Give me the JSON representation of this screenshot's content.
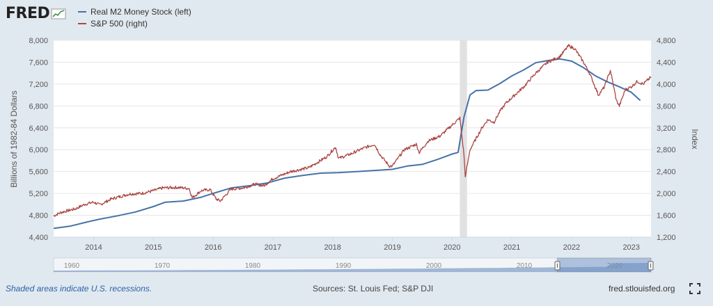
{
  "logo": {
    "text": "FRED"
  },
  "legend": [
    {
      "label": "Real M2 Money Stock (left)",
      "color": "#4572a7"
    },
    {
      "label": "S&P 500 (right)",
      "color": "#aa4643"
    }
  ],
  "footer": {
    "note": "Shaded areas indicate U.S. recessions.",
    "sources": "Sources: St. Louis Fed; S&P DJI",
    "site": "fred.stlouisfed.org",
    "fullscreen_icon": "fullscreen-icon"
  },
  "chart_data": {
    "type": "line",
    "ylabel_left": "Billions of 1982-84 Dollars",
    "ylabel_right": "Index",
    "ylim_left": [
      4400,
      8000
    ],
    "ylim_right": [
      1200,
      4800
    ],
    "xlim": [
      2013.33,
      2023.33
    ],
    "yticks_left": [
      "4,400",
      "4,800",
      "5,200",
      "5,600",
      "6,000",
      "6,400",
      "6,800",
      "7,200",
      "7,600",
      "8,000"
    ],
    "yticks_right": [
      "1,200",
      "1,600",
      "2,000",
      "2,400",
      "2,800",
      "3,200",
      "3,600",
      "4,000",
      "4,400",
      "4,800"
    ],
    "xticks": [
      "2014",
      "2015",
      "2016",
      "2017",
      "2018",
      "2019",
      "2020",
      "2021",
      "2022",
      "2023"
    ],
    "recession": [
      2020.13,
      2020.25
    ],
    "series": [
      {
        "name": "Real M2 Money Stock (left)",
        "axis": "left",
        "color": "#4572a7",
        "x": [
          2013.33,
          2013.6,
          2013.9,
          2014.1,
          2014.4,
          2014.7,
          2015.0,
          2015.2,
          2015.5,
          2015.8,
          2016.0,
          2016.3,
          2016.6,
          2016.9,
          2017.2,
          2017.5,
          2017.8,
          2018.1,
          2018.4,
          2018.7,
          2019.0,
          2019.25,
          2019.5,
          2019.75,
          2020.0,
          2020.1,
          2020.2,
          2020.3,
          2020.4,
          2020.6,
          2020.8,
          2021.0,
          2021.2,
          2021.4,
          2021.6,
          2021.8,
          2022.0,
          2022.2,
          2022.4,
          2022.6,
          2022.8,
          2023.0,
          2023.15
        ],
        "values": [
          4560,
          4600,
          4680,
          4730,
          4790,
          4860,
          4960,
          5040,
          5060,
          5130,
          5200,
          5300,
          5340,
          5390,
          5480,
          5530,
          5570,
          5580,
          5600,
          5620,
          5640,
          5700,
          5730,
          5820,
          5920,
          5950,
          6600,
          7000,
          7080,
          7090,
          7210,
          7350,
          7460,
          7590,
          7630,
          7660,
          7620,
          7500,
          7350,
          7240,
          7150,
          7050,
          6900
        ]
      },
      {
        "name": "S&P 500 (right)",
        "axis": "right",
        "color": "#aa4643",
        "x": [
          2013.33,
          2013.45,
          2013.55,
          2013.7,
          2013.85,
          2014.0,
          2014.1,
          2014.3,
          2014.5,
          2014.6,
          2014.8,
          2015.0,
          2015.15,
          2015.4,
          2015.6,
          2015.65,
          2015.8,
          2015.95,
          2016.05,
          2016.12,
          2016.3,
          2016.5,
          2016.7,
          2016.85,
          2017.0,
          2017.3,
          2017.6,
          2017.9,
          2018.05,
          2018.1,
          2018.3,
          2018.5,
          2018.7,
          2018.8,
          2018.95,
          2019.0,
          2019.2,
          2019.4,
          2019.45,
          2019.6,
          2019.8,
          2020.0,
          2020.1,
          2020.13,
          2020.2,
          2020.22,
          2020.3,
          2020.4,
          2020.5,
          2020.6,
          2020.7,
          2020.8,
          2020.9,
          2021.0,
          2021.2,
          2021.4,
          2021.6,
          2021.8,
          2021.95,
          2022.05,
          2022.2,
          2022.3,
          2022.45,
          2022.55,
          2022.65,
          2022.75,
          2022.8,
          2022.9,
          2023.0,
          2023.1,
          2023.2,
          2023.33
        ],
        "values": [
          1590,
          1650,
          1680,
          1720,
          1800,
          1840,
          1790,
          1900,
          1960,
          1990,
          2000,
          2050,
          2100,
          2110,
          2090,
          1920,
          2050,
          2070,
          1900,
          1860,
          2080,
          2100,
          2170,
          2140,
          2270,
          2400,
          2470,
          2670,
          2850,
          2640,
          2720,
          2820,
          2900,
          2700,
          2500,
          2500,
          2800,
          2900,
          2750,
          2960,
          3050,
          3250,
          3350,
          3380,
          2700,
          2300,
          2800,
          3000,
          3200,
          3350,
          3300,
          3500,
          3650,
          3750,
          3950,
          4200,
          4400,
          4500,
          4700,
          4650,
          4400,
          4200,
          3800,
          3950,
          4250,
          3700,
          3600,
          3900,
          3950,
          4050,
          4000,
          4130
        ]
      }
    ],
    "navigator": {
      "xticks": [
        "1960",
        "1970",
        "1980",
        "1990",
        "2000",
        "2010",
        "2020"
      ],
      "xlim": [
        1958,
        2024
      ]
    }
  }
}
